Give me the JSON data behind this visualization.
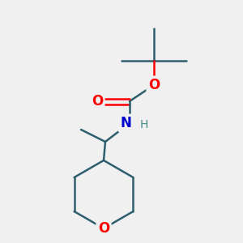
{
  "background_color": "#f0f0f0",
  "bond_color": "#2d5f6e",
  "bond_width": 1.8,
  "O_color": "#ff0000",
  "N_color": "#0000cc",
  "figsize": [
    3.0,
    3.0
  ],
  "dpi": 100,
  "xlim": [
    0,
    300
  ],
  "ylim": [
    0,
    300
  ]
}
